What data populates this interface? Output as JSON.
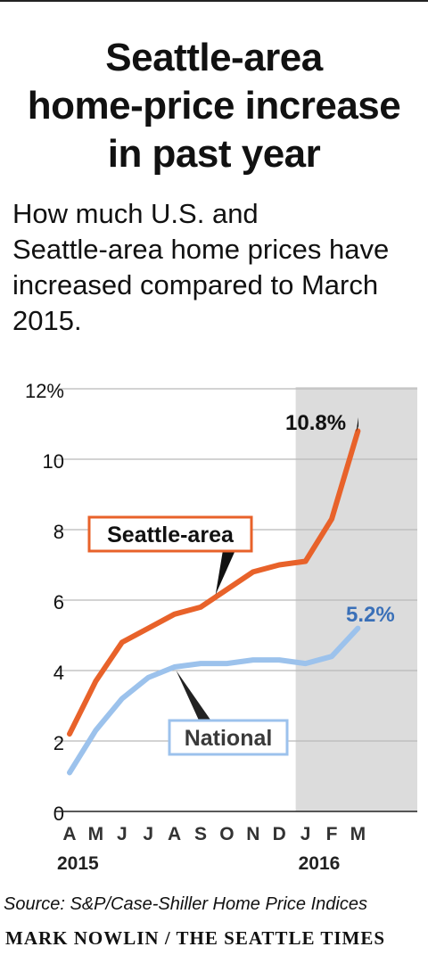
{
  "header": {
    "title_lines": [
      "Seattle-area",
      "home-price increase",
      "in past year"
    ],
    "subtitle_lines": [
      "How much U.S. and",
      "Seattle-area home prices have",
      "increased compared to March",
      "2015."
    ]
  },
  "chart_data": {
    "type": "line",
    "x": [
      "A",
      "M",
      "J",
      "J",
      "A",
      "S",
      "O",
      "N",
      "D",
      "J",
      "F",
      "M"
    ],
    "year_labels": [
      "2015",
      "2016"
    ],
    "y_tick_labels": [
      "12%",
      "10",
      "8",
      "6",
      "4",
      "2",
      "0"
    ],
    "y_ticks": [
      12,
      10,
      8,
      6,
      4,
      2,
      0
    ],
    "ylim": [
      0,
      12
    ],
    "shaded_region": {
      "from_index": 9,
      "to_index": 11
    },
    "grid": true,
    "series": [
      {
        "name": "Seattle-area",
        "values": [
          2.2,
          3.7,
          4.8,
          5.2,
          5.6,
          5.8,
          6.3,
          6.8,
          7.0,
          7.1,
          8.3,
          10.8
        ],
        "end_label": "10.8%",
        "color": "#e8622a",
        "label_color": "#e8622a"
      },
      {
        "name": "National",
        "values": [
          1.1,
          2.3,
          3.2,
          3.8,
          4.1,
          4.2,
          4.2,
          4.3,
          4.3,
          4.2,
          4.4,
          5.2
        ],
        "end_label": "5.2%",
        "color": "#9cc2ec",
        "label_color": "#3a70b8"
      }
    ]
  },
  "footer": {
    "source": "Source: S&P/Case-Shiller Home Price Indices",
    "credit": "MARK NOWLIN / THE SEATTLE TIMES"
  }
}
